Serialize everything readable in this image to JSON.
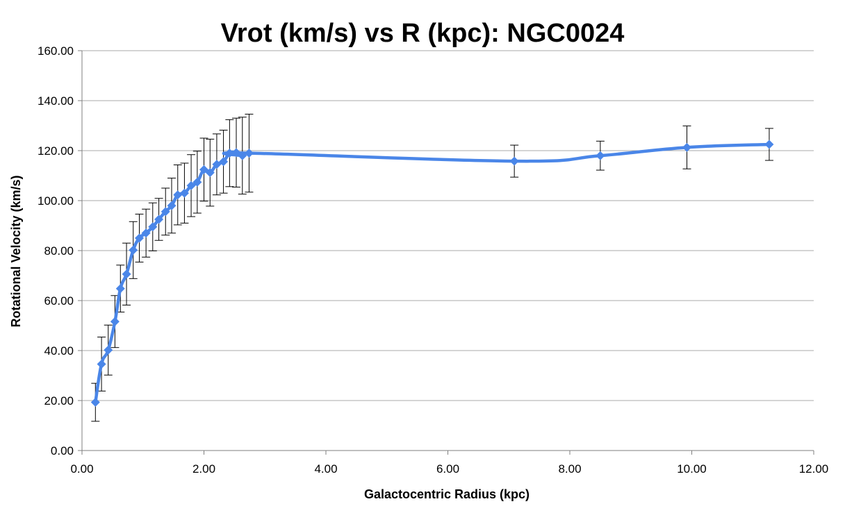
{
  "chart_data": {
    "type": "line",
    "title": "Vrot (km/s) vs R (kpc): NGC0024",
    "xlabel": "Galactocentric Radius (kpc)",
    "ylabel": "Rotational Velocity (km/s)",
    "xlim": [
      0,
      12
    ],
    "ylim": [
      0,
      160
    ],
    "x_ticks": [
      "0.00",
      "2.00",
      "4.00",
      "6.00",
      "8.00",
      "10.00",
      "12.00"
    ],
    "y_ticks": [
      "0.00",
      "20.00",
      "40.00",
      "60.00",
      "80.00",
      "100.00",
      "120.00",
      "140.00",
      "160.00"
    ],
    "grid": "horizontal",
    "legend": "none",
    "series_color": "#4a86e8",
    "error_bar_color": "#000000",
    "points": [
      {
        "x": 0.22,
        "y": 19.3,
        "err": 7.6
      },
      {
        "x": 0.32,
        "y": 34.6,
        "err": 10.8
      },
      {
        "x": 0.43,
        "y": 40.2,
        "err": 10.0
      },
      {
        "x": 0.54,
        "y": 51.6,
        "err": 10.4
      },
      {
        "x": 0.63,
        "y": 64.8,
        "err": 9.4
      },
      {
        "x": 0.73,
        "y": 70.6,
        "err": 12.4
      },
      {
        "x": 0.84,
        "y": 80.2,
        "err": 11.4
      },
      {
        "x": 0.94,
        "y": 85.0,
        "err": 9.6
      },
      {
        "x": 1.05,
        "y": 87.0,
        "err": 9.6
      },
      {
        "x": 1.16,
        "y": 89.5,
        "err": 9.6
      },
      {
        "x": 1.26,
        "y": 92.5,
        "err": 8.4
      },
      {
        "x": 1.37,
        "y": 95.6,
        "err": 9.4
      },
      {
        "x": 1.47,
        "y": 98.0,
        "err": 11.0
      },
      {
        "x": 1.57,
        "y": 102.3,
        "err": 12.0
      },
      {
        "x": 1.68,
        "y": 103.0,
        "err": 12.0
      },
      {
        "x": 1.79,
        "y": 106.0,
        "err": 12.4
      },
      {
        "x": 1.89,
        "y": 107.4,
        "err": 12.4
      },
      {
        "x": 2.0,
        "y": 112.4,
        "err": 12.6
      },
      {
        "x": 2.1,
        "y": 111.2,
        "err": 13.4
      },
      {
        "x": 2.21,
        "y": 114.5,
        "err": 12.2
      },
      {
        "x": 2.32,
        "y": 115.6,
        "err": 12.6
      },
      {
        "x": 2.42,
        "y": 119.0,
        "err": 13.4
      },
      {
        "x": 2.53,
        "y": 119.2,
        "err": 13.8
      },
      {
        "x": 2.63,
        "y": 118.0,
        "err": 15.4
      },
      {
        "x": 2.74,
        "y": 119.0,
        "err": 15.6
      },
      {
        "x": 7.09,
        "y": 115.8,
        "err": 6.4
      },
      {
        "x": 8.5,
        "y": 118.0,
        "err": 5.8
      },
      {
        "x": 9.92,
        "y": 121.3,
        "err": 8.6
      },
      {
        "x": 11.27,
        "y": 122.5,
        "err": 6.4
      }
    ]
  }
}
